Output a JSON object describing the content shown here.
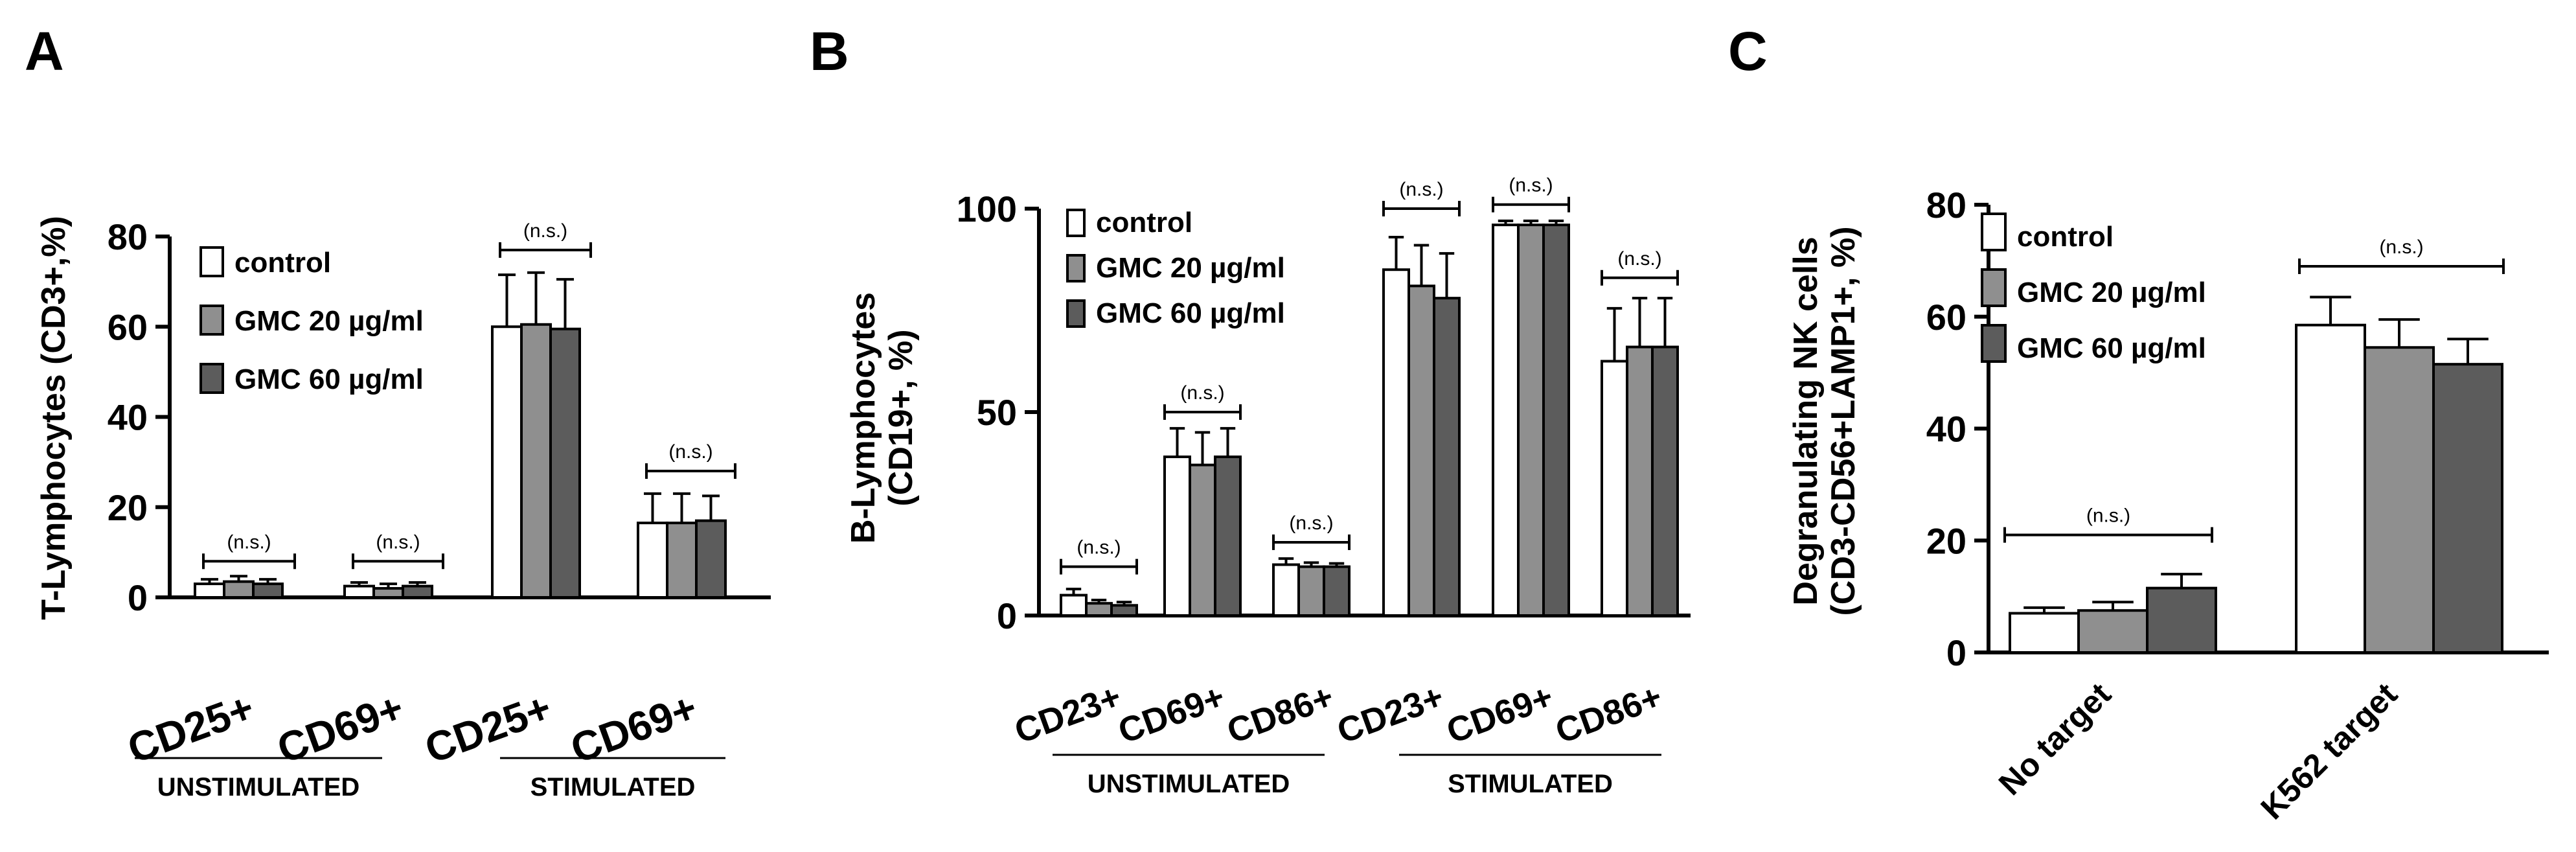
{
  "colors": {
    "control": "#ffffff",
    "gmc20": "#8f8f8f",
    "gmc60": "#5c5c5c",
    "stroke": "#000000"
  },
  "legend": [
    "control",
    "GMC 20 µg/ml",
    "GMC 60 µg/ml"
  ],
  "chart_data": [
    {
      "panel": "A",
      "type": "bar",
      "ylabel": "T-Lymphocytes (CD3+,%)",
      "ylim": [
        0,
        80
      ],
      "yticks": [
        "0",
        "20",
        "40",
        "60",
        "80"
      ],
      "categories": [
        "CD25+",
        "CD69+",
        "CD25+",
        "CD69+"
      ],
      "groups": [
        "UNSTIMULATED",
        "STIMULATED"
      ],
      "significance": [
        "(n.s.)",
        "(n.s.)",
        "(n.s.)",
        "(n.s.)"
      ],
      "series": [
        {
          "name": "control",
          "values": [
            3,
            2.5,
            60,
            16.5
          ],
          "errors": [
            1,
            0.8,
            11.5,
            6.5
          ]
        },
        {
          "name": "GMC 20 µg/ml",
          "values": [
            3.5,
            2,
            60.5,
            16.5
          ],
          "errors": [
            1.2,
            1,
            11.5,
            6.5
          ]
        },
        {
          "name": "GMC 60 µg/ml",
          "values": [
            3,
            2.5,
            59.5,
            17
          ],
          "errors": [
            1,
            0.8,
            11,
            5.5
          ]
        }
      ]
    },
    {
      "panel": "B",
      "type": "bar",
      "ylabel": "B-Lymphocytes (CD19+, %)",
      "ylim": [
        0,
        100
      ],
      "yticks": [
        "0",
        "50",
        "100"
      ],
      "categories": [
        "CD23+",
        "CD69+",
        "CD86+",
        "CD23+",
        "CD69+",
        "CD86+"
      ],
      "groups": [
        "UNSTIMULATED",
        "STIMULATED"
      ],
      "significance": [
        "(n.s.)",
        "(n.s.)",
        "(n.s.)",
        "(n.s.)",
        "(n.s.)",
        "(n.s.)"
      ],
      "series": [
        {
          "name": "control",
          "values": [
            5,
            39,
            12.5,
            85,
            96,
            62.5
          ],
          "errors": [
            1.5,
            7,
            1.5,
            8,
            1,
            13
          ]
        },
        {
          "name": "GMC 20 µg/ml",
          "values": [
            3,
            37,
            12,
            81,
            96,
            66
          ],
          "errors": [
            0.8,
            8,
            1,
            10,
            1,
            12
          ]
        },
        {
          "name": "GMC 60 µg/ml",
          "values": [
            2.5,
            39,
            12,
            78,
            96,
            66
          ],
          "errors": [
            0.8,
            7,
            0.8,
            11,
            1,
            12
          ]
        }
      ]
    },
    {
      "panel": "C",
      "type": "bar",
      "ylabel": "Degranulating NK cells (CD3-CD56+LAMP1+, %)",
      "ylim": [
        0,
        80
      ],
      "yticks": [
        "0",
        "20",
        "40",
        "60",
        "80"
      ],
      "categories": [
        "No target",
        "K562 target"
      ],
      "significance": [
        "(n.s.)",
        "(n.s.)"
      ],
      "series": [
        {
          "name": "control",
          "values": [
            7,
            58.5
          ],
          "errors": [
            1,
            5
          ]
        },
        {
          "name": "GMC 20 µg/ml",
          "values": [
            7.5,
            54.5
          ],
          "errors": [
            1.5,
            5
          ]
        },
        {
          "name": "GMC 60 µg/ml",
          "values": [
            11.5,
            51.5
          ],
          "errors": [
            2.5,
            4.5
          ]
        }
      ]
    }
  ]
}
